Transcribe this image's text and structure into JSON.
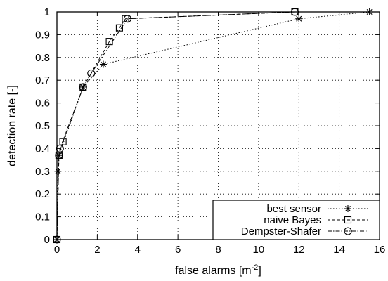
{
  "chart_data": {
    "type": "line",
    "xlabel": "false alarms [m",
    "xlabel_sup": "-2",
    "xlabel_end": "]",
    "ylabel": "detection rate [-]",
    "xlim": [
      0,
      16
    ],
    "ylim": [
      0,
      1
    ],
    "xticks": [
      0,
      2,
      4,
      6,
      8,
      10,
      12,
      14,
      16
    ],
    "yticks": [
      0,
      0.1,
      0.2,
      0.3,
      0.4,
      0.5,
      0.6,
      0.7,
      0.8,
      0.9,
      1
    ],
    "grid": true,
    "legend_position": "bottom-right",
    "series": [
      {
        "name": "best sensor",
        "marker": "asterisk",
        "dash": "dotted",
        "x": [
          0,
          0.05,
          0.1,
          1.3,
          2.3,
          12.0,
          15.5
        ],
        "y": [
          0,
          0.3,
          0.37,
          0.67,
          0.77,
          0.97,
          1.0
        ]
      },
      {
        "name": "naive Bayes",
        "marker": "square",
        "dash": "dashed",
        "x": [
          0,
          0.1,
          0.3,
          1.3,
          2.6,
          3.1,
          3.4,
          11.8
        ],
        "y": [
          0,
          0.37,
          0.43,
          0.67,
          0.87,
          0.93,
          0.97,
          1.0
        ]
      },
      {
        "name": "Dempster-Shafer",
        "marker": "circle",
        "dash": "dashdot",
        "x": [
          0,
          0.1,
          0.15,
          1.3,
          1.7,
          3.5,
          11.8
        ],
        "y": [
          0,
          0.37,
          0.4,
          0.67,
          0.73,
          0.97,
          1.0
        ]
      }
    ]
  }
}
